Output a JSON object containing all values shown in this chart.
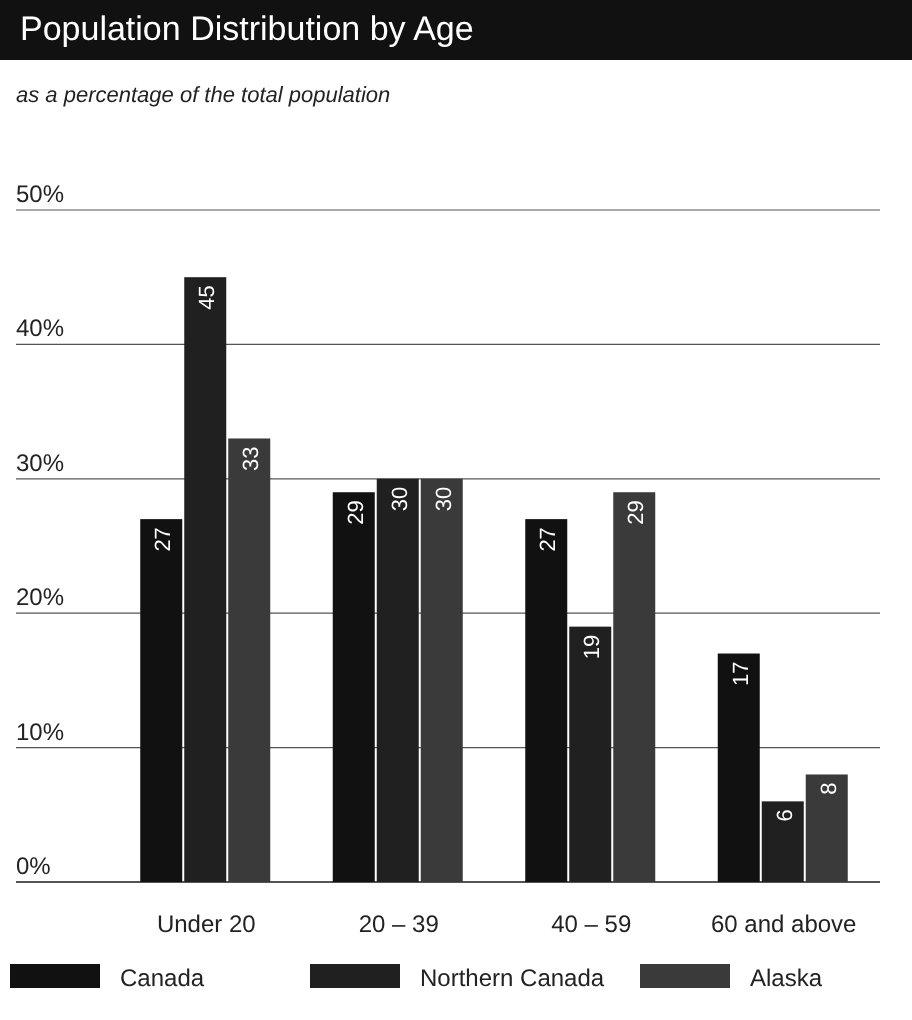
{
  "chart_data": {
    "type": "bar",
    "title": "Population Distribution by Age",
    "subtitle": "as a percentage of the total population",
    "categories": [
      "Under 20",
      "20 – 39",
      "40 – 59",
      "60 and above"
    ],
    "series": [
      {
        "name": "Canada",
        "color": "#111111",
        "values": [
          27,
          29,
          27,
          17
        ]
      },
      {
        "name": "Northern Canada",
        "color": "#202020",
        "values": [
          45,
          30,
          19,
          6
        ]
      },
      {
        "name": "Alaska",
        "color": "#3a3a3a",
        "values": [
          33,
          30,
          29,
          8
        ]
      }
    ],
    "ylim": [
      0,
      50
    ],
    "yticks": [
      {
        "value": 0,
        "label": "0%"
      },
      {
        "value": 10,
        "label": "10%"
      },
      {
        "value": 20,
        "label": "20%"
      },
      {
        "value": 30,
        "label": "30%"
      },
      {
        "value": 40,
        "label": "40%"
      },
      {
        "value": 50,
        "label": "50%"
      }
    ],
    "grid": "y",
    "legend": "bottom",
    "data_labels": true
  }
}
